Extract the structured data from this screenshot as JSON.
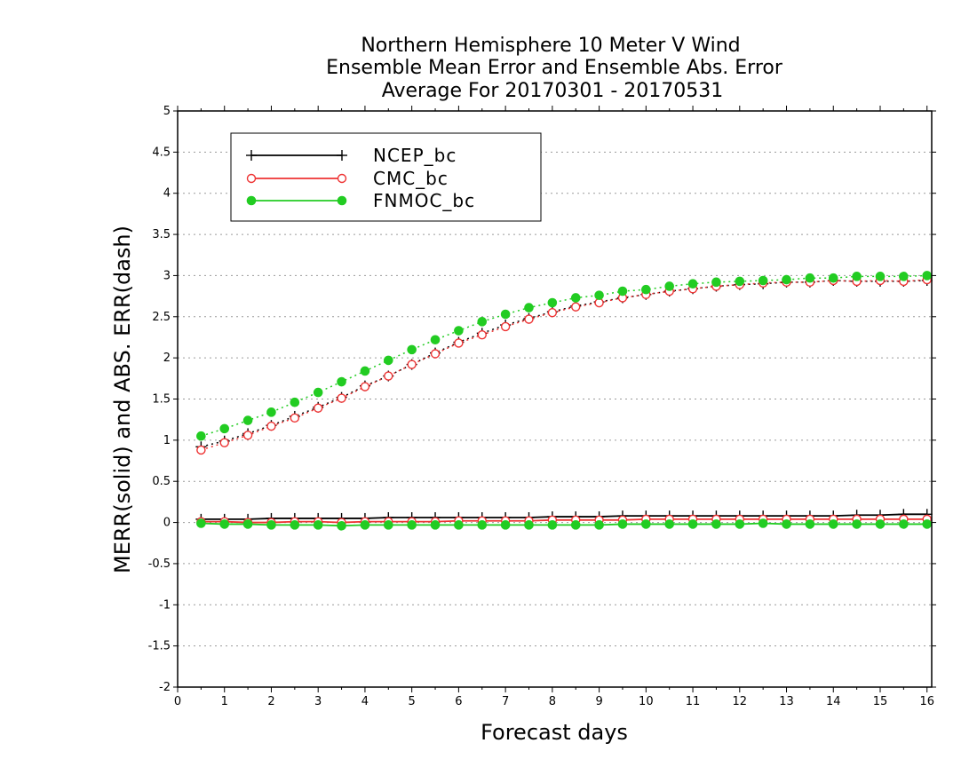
{
  "chart_data": {
    "type": "line",
    "title_lines": [
      "Northern Hemisphere 10 Meter V Wind",
      "Ensemble Mean Error and Ensemble Abs. Error",
      "Average For 20170301 - 20170531"
    ],
    "xlabel": "Forecast days",
    "ylabel": "MERR(solid) and ABS. ERR(dash)",
    "xlim": [
      0,
      16.1
    ],
    "ylim": [
      -2,
      5
    ],
    "xticks": [
      0,
      1,
      2,
      3,
      4,
      5,
      6,
      7,
      8,
      9,
      10,
      11,
      12,
      13,
      14,
      15,
      16
    ],
    "xtick_labels": [
      "0",
      "1",
      "2",
      "3",
      "4",
      "5",
      "6",
      "7",
      "8",
      "9",
      "10",
      "11",
      "12",
      "13",
      "14",
      "15",
      "16"
    ],
    "yticks": [
      -2,
      -1.5,
      -1,
      -0.5,
      0,
      0.5,
      1,
      1.5,
      2,
      2.5,
      3,
      3.5,
      4,
      4.5,
      5
    ],
    "ytick_labels": [
      "-2",
      "-1.5",
      "-1",
      "-0.5",
      "0",
      "0.5",
      "1",
      "1.5",
      "2",
      "2.5",
      "3",
      "3.5",
      "4",
      "4.5",
      "5"
    ],
    "grid": "horizontal dotted",
    "legend_position": "top-left",
    "x": [
      0.5,
      1,
      1.5,
      2,
      2.5,
      3,
      3.5,
      4,
      4.5,
      5,
      5.5,
      6,
      6.5,
      7,
      7.5,
      8,
      8.5,
      9,
      9.5,
      10,
      10.5,
      11,
      11.5,
      12,
      12.5,
      13,
      13.5,
      14,
      14.5,
      15,
      15.5,
      16
    ],
    "series": [
      {
        "name": "NCEP_bc",
        "color": "#000000",
        "marker": "plus",
        "mean_error": [
          0.04,
          0.04,
          0.04,
          0.05,
          0.05,
          0.05,
          0.05,
          0.05,
          0.06,
          0.06,
          0.06,
          0.06,
          0.06,
          0.06,
          0.06,
          0.07,
          0.07,
          0.07,
          0.08,
          0.08,
          0.08,
          0.08,
          0.08,
          0.08,
          0.08,
          0.08,
          0.08,
          0.08,
          0.09,
          0.09,
          0.1,
          0.1
        ],
        "abs_error": [
          0.92,
          0.99,
          1.08,
          1.18,
          1.29,
          1.4,
          1.52,
          1.66,
          1.78,
          1.92,
          2.06,
          2.19,
          2.3,
          2.4,
          2.48,
          2.56,
          2.63,
          2.68,
          2.73,
          2.77,
          2.81,
          2.84,
          2.87,
          2.89,
          2.9,
          2.92,
          2.92,
          2.94,
          2.93,
          2.93,
          2.93,
          2.94
        ]
      },
      {
        "name": "CMC_bc",
        "color": "#ee3333",
        "marker": "open-circle",
        "mean_error": [
          0.01,
          0.01,
          0.0,
          0.0,
          0.01,
          0.01,
          0.0,
          0.01,
          0.01,
          0.01,
          0.01,
          0.02,
          0.02,
          0.02,
          0.02,
          0.03,
          0.03,
          0.03,
          0.03,
          0.04,
          0.04,
          0.04,
          0.04,
          0.04,
          0.04,
          0.04,
          0.04,
          0.04,
          0.04,
          0.04,
          0.04,
          0.04
        ],
        "abs_error": [
          0.88,
          0.97,
          1.06,
          1.17,
          1.27,
          1.39,
          1.51,
          1.65,
          1.78,
          1.92,
          2.05,
          2.18,
          2.28,
          2.38,
          2.47,
          2.55,
          2.62,
          2.67,
          2.73,
          2.77,
          2.81,
          2.84,
          2.87,
          2.89,
          2.91,
          2.92,
          2.92,
          2.94,
          2.93,
          2.94,
          2.93,
          2.95
        ]
      },
      {
        "name": "FNMOC_bc",
        "color": "#22cc22",
        "marker": "filled-circle",
        "mean_error": [
          -0.01,
          -0.02,
          -0.02,
          -0.03,
          -0.03,
          -0.03,
          -0.04,
          -0.03,
          -0.03,
          -0.03,
          -0.03,
          -0.03,
          -0.03,
          -0.03,
          -0.03,
          -0.03,
          -0.03,
          -0.03,
          -0.02,
          -0.02,
          -0.02,
          -0.02,
          -0.02,
          -0.02,
          -0.01,
          -0.02,
          -0.02,
          -0.02,
          -0.02,
          -0.02,
          -0.02,
          -0.02
        ],
        "abs_error": [
          1.05,
          1.14,
          1.24,
          1.34,
          1.46,
          1.58,
          1.71,
          1.84,
          1.97,
          2.1,
          2.22,
          2.33,
          2.44,
          2.53,
          2.61,
          2.67,
          2.73,
          2.76,
          2.81,
          2.83,
          2.87,
          2.9,
          2.92,
          2.93,
          2.94,
          2.95,
          2.97,
          2.97,
          2.99,
          2.99,
          2.99,
          3.0
        ]
      }
    ]
  }
}
